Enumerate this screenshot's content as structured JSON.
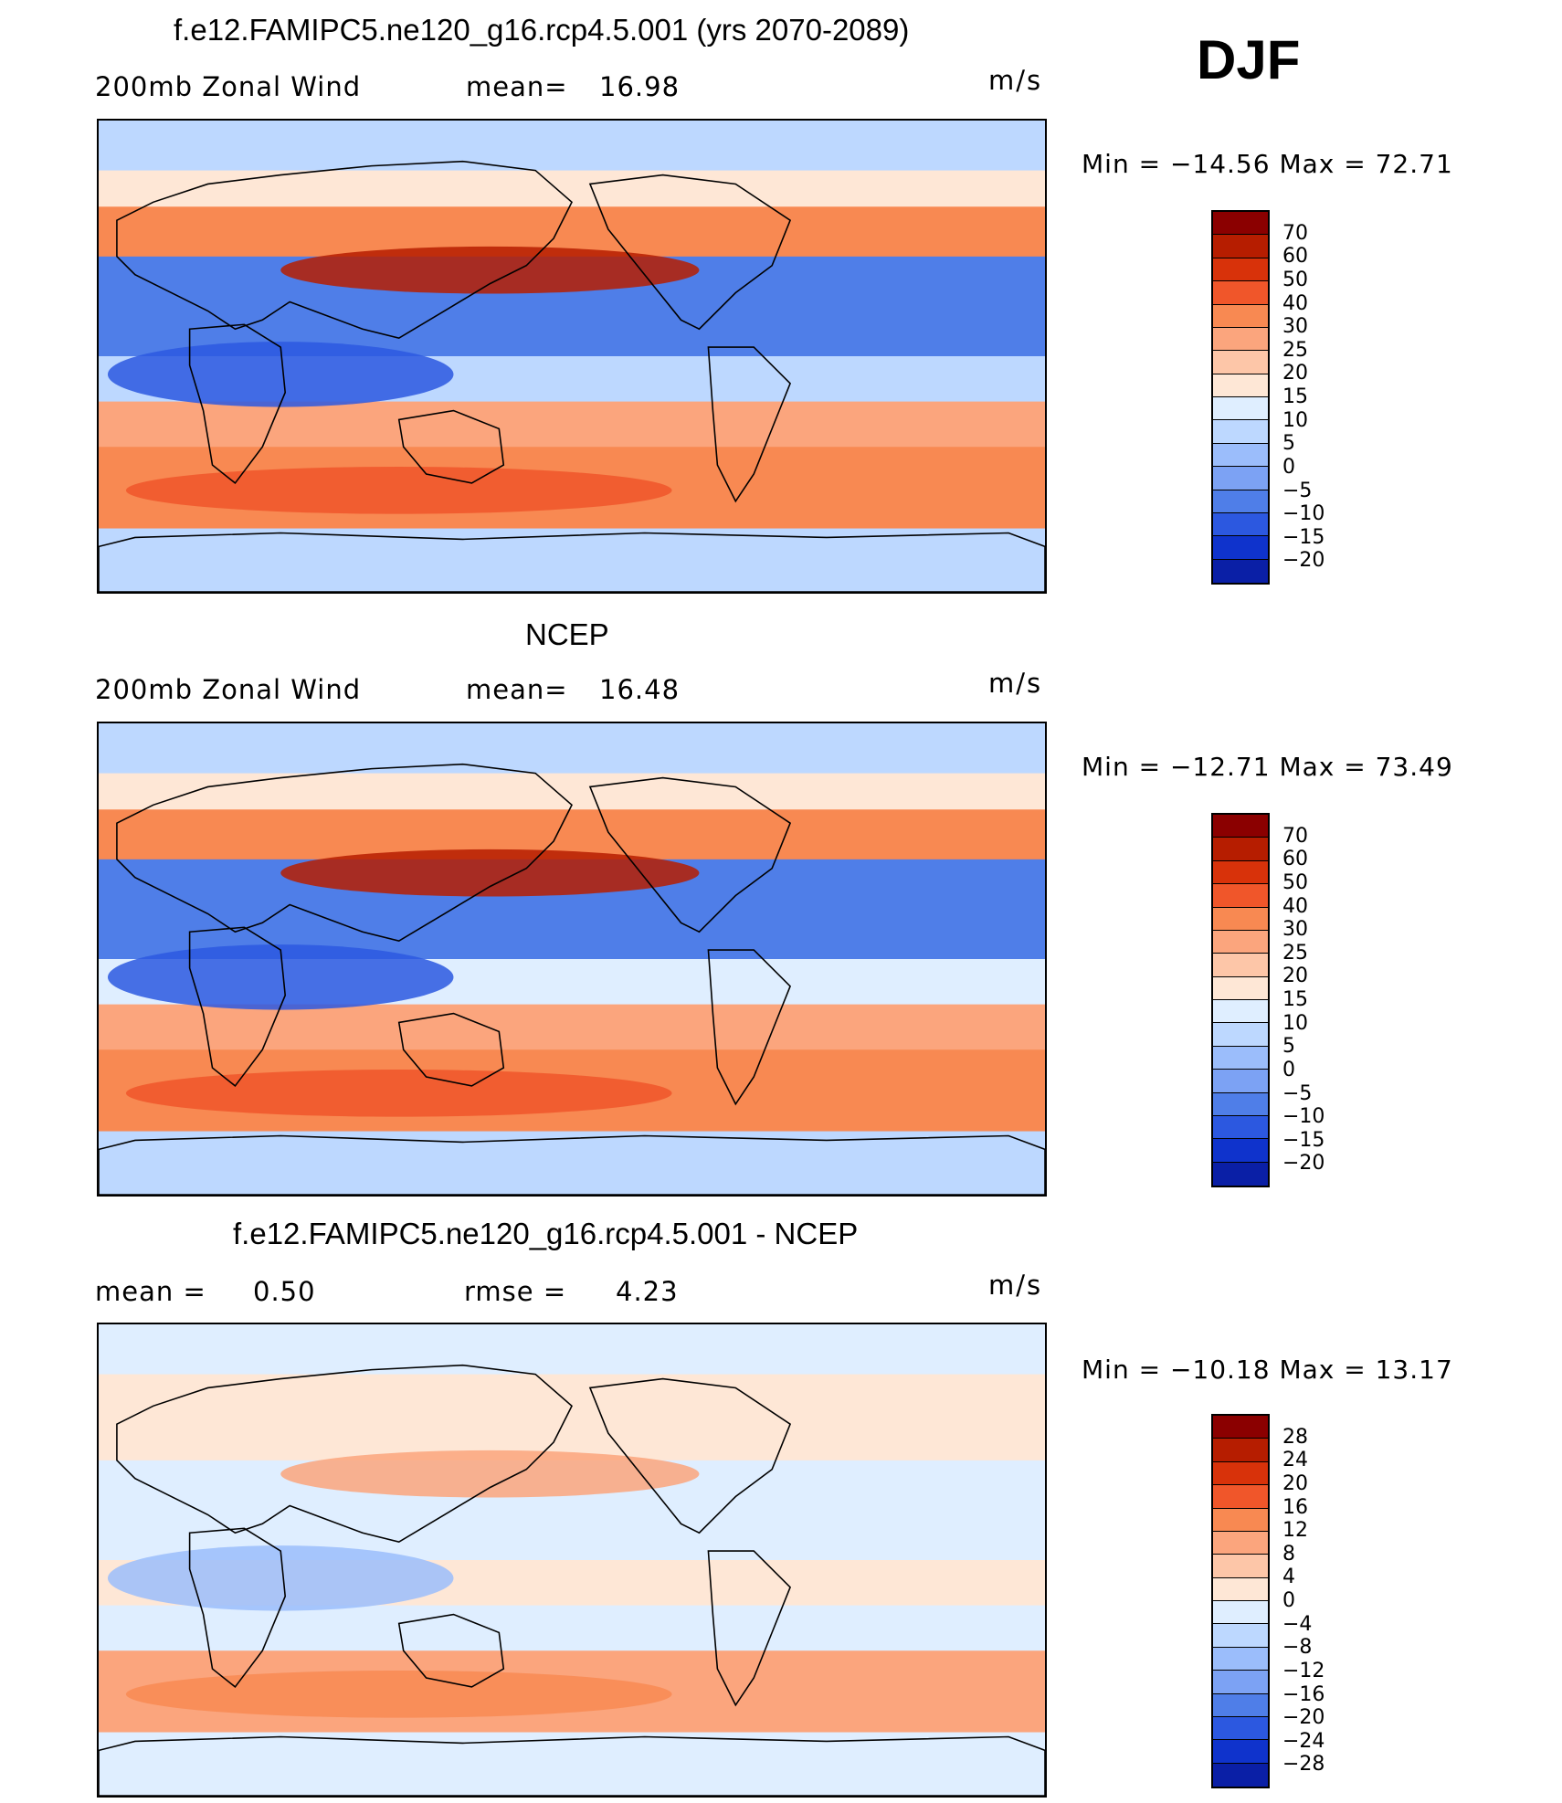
{
  "season": "DJF",
  "panels": [
    {
      "title": "f.e12.FAMIPC5.ne120_g16.rcp4.5.001 (yrs 2070-2089)",
      "left_label": "200mb Zonal Wind",
      "stat_label": "mean=",
      "stat_value": "16.98",
      "units": "m/s",
      "minmax": "Min = −14.56 Max = 72.71",
      "colorbar": {
        "labels": [
          "70",
          "60",
          "50",
          "40",
          "30",
          "25",
          "20",
          "15",
          "10",
          "5",
          "0",
          "−5",
          "−10",
          "−15",
          "−20"
        ],
        "colors": [
          "#8b0000",
          "#b61d00",
          "#d8320a",
          "#f0562a",
          "#f88952",
          "#fba57d",
          "#fdc6a8",
          "#fee7d6",
          "#dfeeff",
          "#bdd8ff",
          "#9bbdfb",
          "#7ca2f4",
          "#4f7ee8",
          "#2c58e0",
          "#0f33cc",
          "#0a1fa6"
        ]
      },
      "map": {
        "bands": [
          "#bdd8ff",
          "#fee7d6",
          "#f88952",
          "#4f7ee8",
          "#bdd8ff",
          "#fba57d",
          "#f88952",
          "#bdd8ff"
        ],
        "jets": [
          {
            "color": "#b61d00"
          },
          {
            "color": "#2c58e0"
          },
          {
            "color": "#f0562a"
          }
        ]
      }
    },
    {
      "title": "NCEP",
      "left_label": "200mb Zonal Wind",
      "stat_label": "mean=",
      "stat_value": "16.48",
      "units": "m/s",
      "minmax": "Min = −12.71 Max = 73.49",
      "colorbar": {
        "labels": [
          "70",
          "60",
          "50",
          "40",
          "30",
          "25",
          "20",
          "15",
          "10",
          "5",
          "0",
          "−5",
          "−10",
          "−15",
          "−20"
        ],
        "colors": [
          "#8b0000",
          "#b61d00",
          "#d8320a",
          "#f0562a",
          "#f88952",
          "#fba57d",
          "#fdc6a8",
          "#fee7d6",
          "#dfeeff",
          "#bdd8ff",
          "#9bbdfb",
          "#7ca2f4",
          "#4f7ee8",
          "#2c58e0",
          "#0f33cc",
          "#0a1fa6"
        ]
      },
      "map": {
        "bands": [
          "#bdd8ff",
          "#fee7d6",
          "#f88952",
          "#4f7ee8",
          "#dfeeff",
          "#fba57d",
          "#f88952",
          "#bdd8ff"
        ],
        "jets": [
          {
            "color": "#b61d00"
          },
          {
            "color": "#2c58e0"
          },
          {
            "color": "#f0562a"
          }
        ]
      }
    },
    {
      "title": "f.e12.FAMIPC5.ne120_g16.rcp4.5.001 - NCEP",
      "left_label": "mean =",
      "left_value": "0.50",
      "stat_label": "rmse =",
      "stat_value": "4.23",
      "units": "m/s",
      "minmax": "Min = −10.18 Max = 13.17",
      "colorbar": {
        "labels": [
          "28",
          "24",
          "20",
          "16",
          "12",
          "8",
          "4",
          "0",
          "−4",
          "−8",
          "−12",
          "−16",
          "−20",
          "−24",
          "−28"
        ],
        "colors": [
          "#8b0000",
          "#b61d00",
          "#d8320a",
          "#f0562a",
          "#f88952",
          "#fba57d",
          "#fdc6a8",
          "#fee7d6",
          "#dfeeff",
          "#bdd8ff",
          "#9bbdfb",
          "#7ca2f4",
          "#4f7ee8",
          "#2c58e0",
          "#0f33cc",
          "#0a1fa6"
        ]
      },
      "map": {
        "bands": [
          "#dfeeff",
          "#fee7d6",
          "#fee7d6",
          "#dfeeff",
          "#fee7d6",
          "#dfeeff",
          "#fba57d",
          "#dfeeff"
        ],
        "jets": [
          {
            "color": "#fba57d"
          },
          {
            "color": "#9bbdfb"
          },
          {
            "color": "#f88952"
          }
        ]
      }
    }
  ]
}
